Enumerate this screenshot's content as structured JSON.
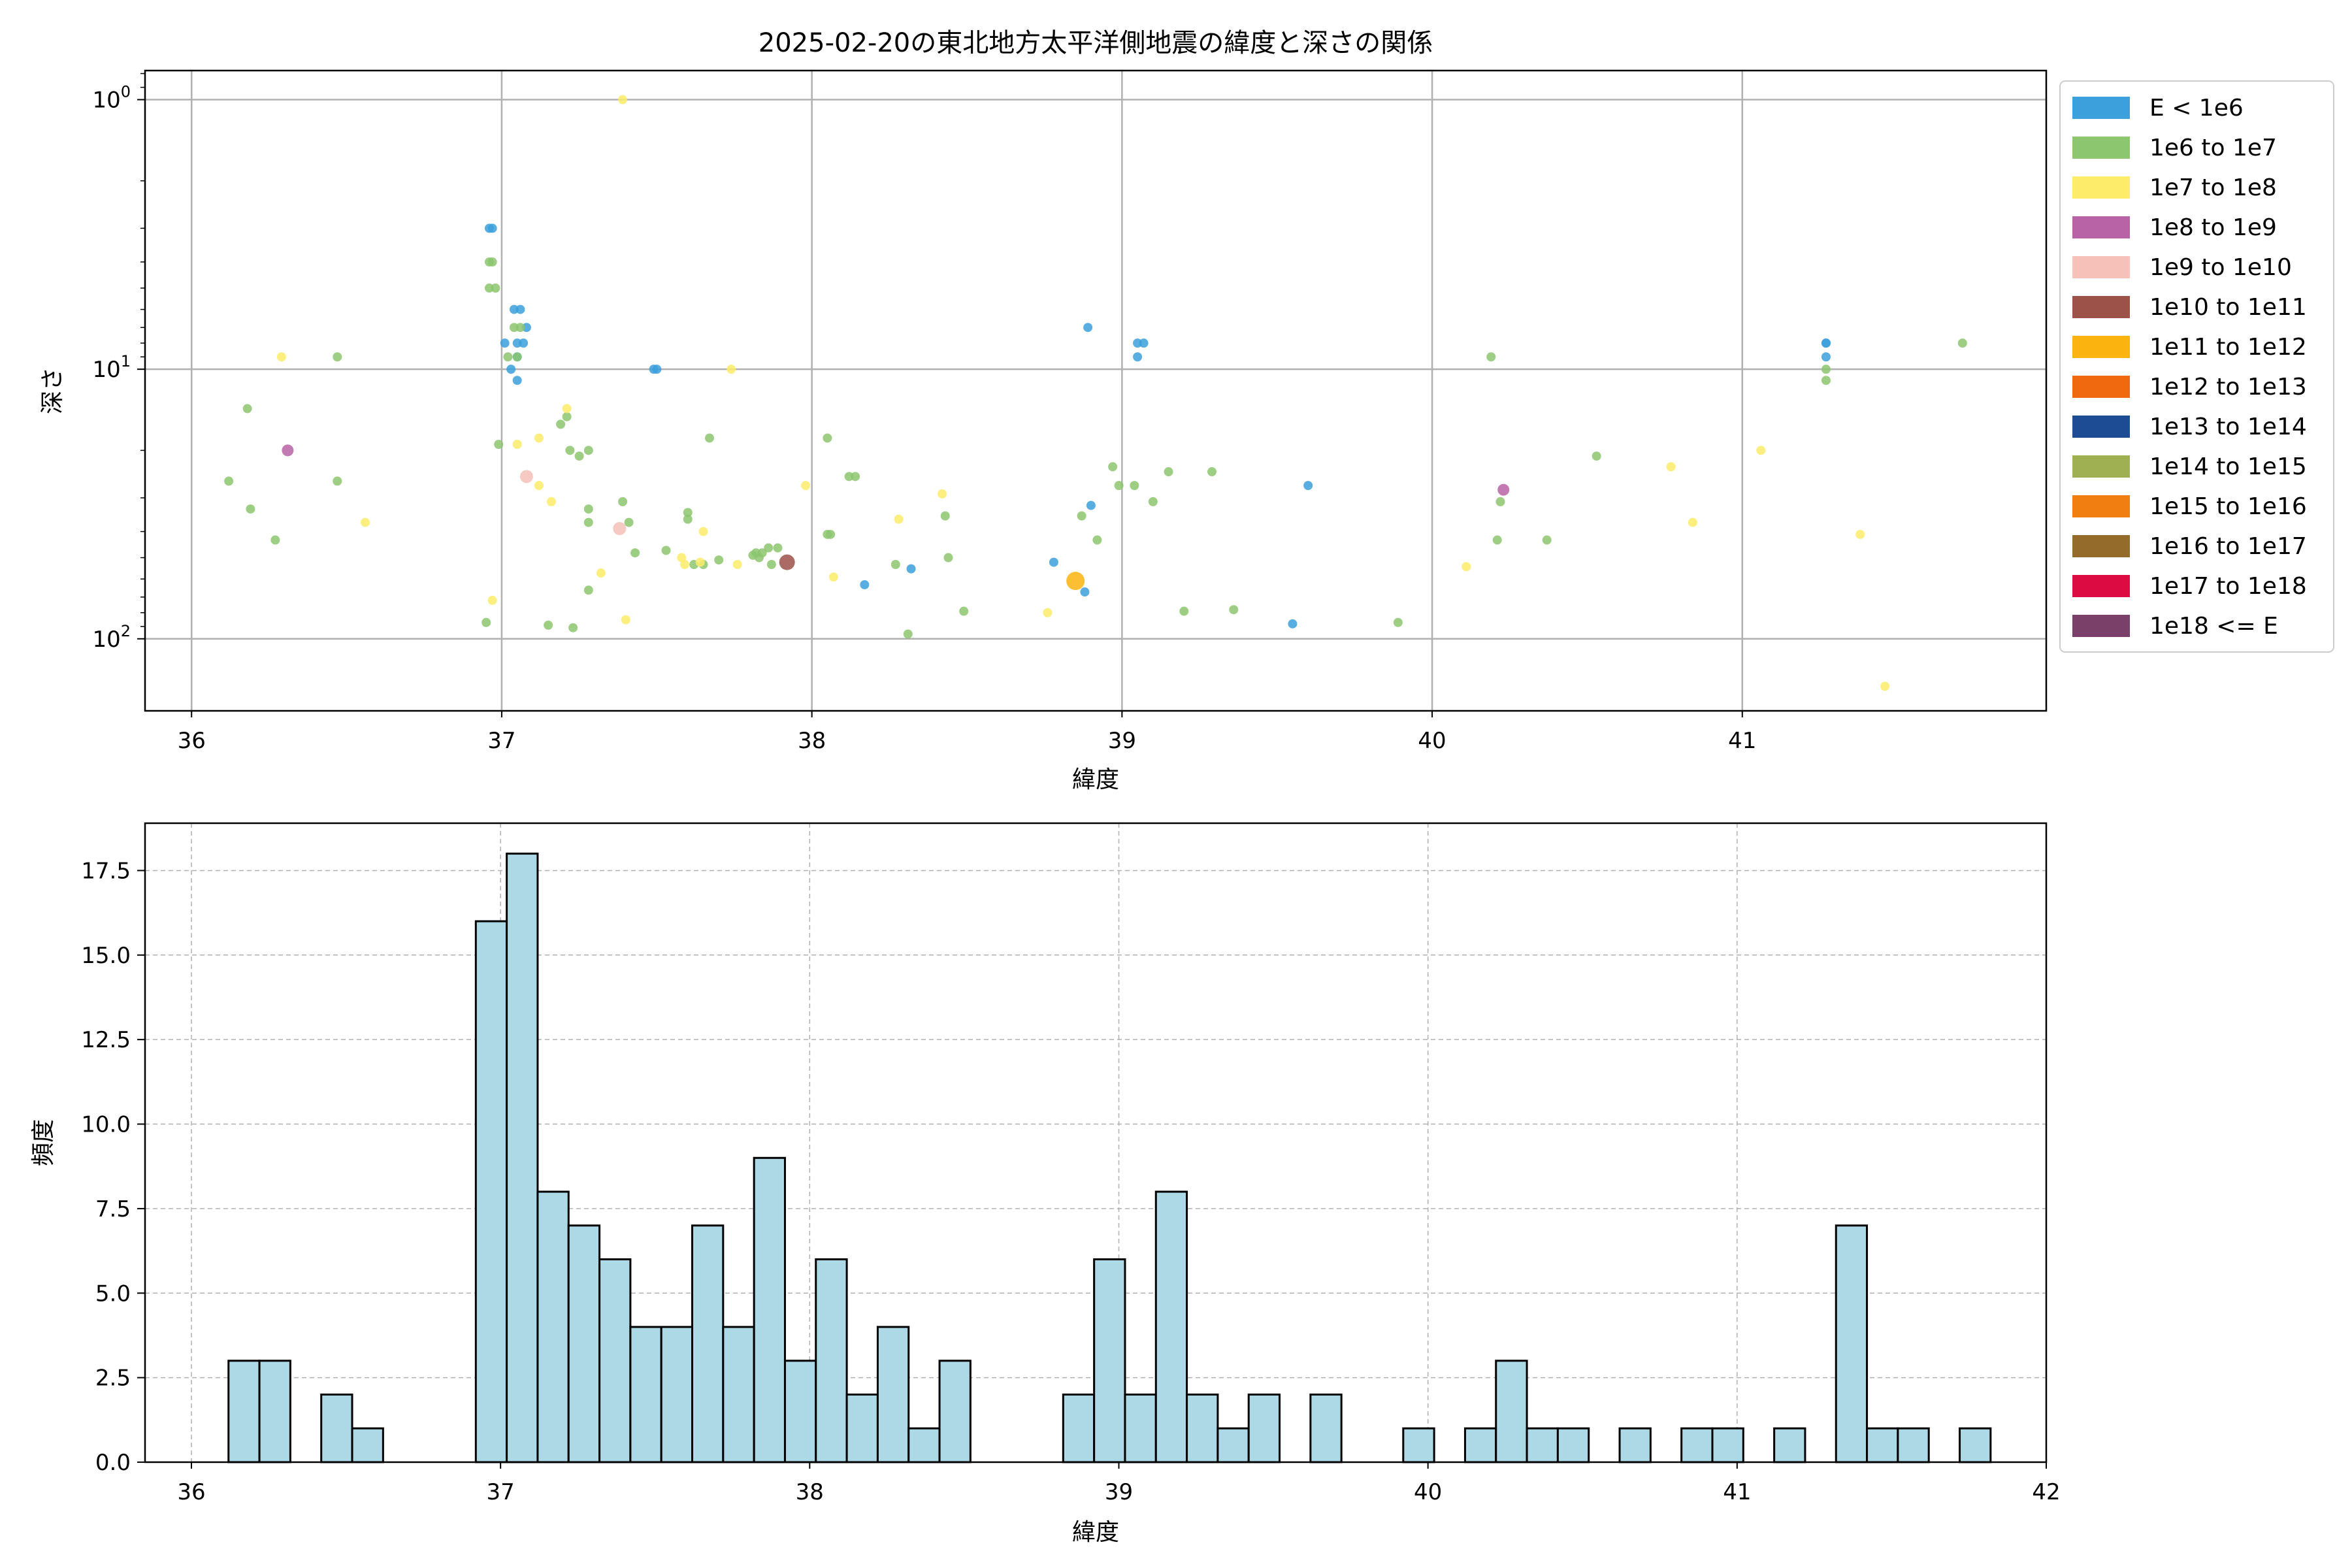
{
  "chart_data": [
    {
      "type": "scatter",
      "title": "2025-02-20の東北地方太平洋側地震の緯度と深さの関係",
      "xlabel": "緯度",
      "ylabel": "深さ",
      "xlim": [
        35.85,
        41.98
      ],
      "ylim": [
        185,
        0.78
      ],
      "yscale": "log",
      "y_inverted": true,
      "grid": true,
      "xticks": [
        36,
        37,
        38,
        39,
        40,
        41
      ],
      "yticks": [
        1,
        10,
        100
      ],
      "ytick_labels": [
        "10^0",
        "10^1",
        "10^2"
      ],
      "legend_position": "outside-right-top",
      "legend": [
        {
          "label": "E < 1e6",
          "color": "#3ca0dc"
        },
        {
          "label": "1e6 to 1e7",
          "color": "#8cc66e"
        },
        {
          "label": "1e7 to 1e8",
          "color": "#fcec6a"
        },
        {
          "label": "1e8 to 1e9",
          "color": "#b863a5"
        },
        {
          "label": "1e9 to 1e10",
          "color": "#f5c1b9"
        },
        {
          "label": "1e10 to 1e11",
          "color": "#9c5149"
        },
        {
          "label": "1e11 to 1e12",
          "color": "#fbb30f"
        },
        {
          "label": "1e12 to 1e13",
          "color": "#f0690e"
        },
        {
          "label": "1e13 to 1e14",
          "color": "#1d4b94"
        },
        {
          "label": "1e14 to 1e15",
          "color": "#9eb052"
        },
        {
          "label": "1e15 to 1e16",
          "color": "#f07e10"
        },
        {
          "label": "1e16 to 1e17",
          "color": "#956b2c"
        },
        {
          "label": "1e17 to 1e18",
          "color": "#dc0b41"
        },
        {
          "label": "1e18 <= E",
          "color": "#7a4069"
        }
      ],
      "series": [
        {
          "name": "E < 1e6",
          "points": [
            [
              36.96,
              3.0
            ],
            [
              36.97,
              3.0
            ],
            [
              37.04,
              6.0
            ],
            [
              37.06,
              6.0
            ],
            [
              37.08,
              7.0
            ],
            [
              37.01,
              8.0
            ],
            [
              37.05,
              8.0
            ],
            [
              37.07,
              8.0
            ],
            [
              37.05,
              9.0
            ],
            [
              37.03,
              10.0
            ],
            [
              37.05,
              11.0
            ],
            [
              37.49,
              10.0
            ],
            [
              37.5,
              10.0
            ],
            [
              38.89,
              7.0
            ],
            [
              39.05,
              8.0
            ],
            [
              39.07,
              8.0
            ],
            [
              39.05,
              9.0
            ],
            [
              38.9,
              32.0
            ],
            [
              38.78,
              52.0
            ],
            [
              38.17,
              63.0
            ],
            [
              38.32,
              55.0
            ],
            [
              38.88,
              67.0
            ],
            [
              39.55,
              88.0
            ],
            [
              39.6,
              27.0
            ],
            [
              41.27,
              8.0
            ],
            [
              41.27,
              8.0
            ],
            [
              41.27,
              9.0
            ]
          ]
        },
        {
          "name": "1e6 to 1e7",
          "points": [
            [
              36.96,
              4.0
            ],
            [
              36.97,
              4.0
            ],
            [
              36.96,
              5.0
            ],
            [
              36.98,
              5.0
            ],
            [
              37.04,
              7.0
            ],
            [
              37.06,
              7.0
            ],
            [
              37.02,
              9.0
            ],
            [
              37.05,
              9.0
            ],
            [
              36.18,
              14.0
            ],
            [
              36.47,
              9.0
            ],
            [
              36.12,
              26.0
            ],
            [
              36.19,
              33.0
            ],
            [
              36.27,
              43.0
            ],
            [
              36.47,
              26.0
            ],
            [
              36.95,
              87.0
            ],
            [
              36.99,
              19.0
            ],
            [
              37.15,
              89.0
            ],
            [
              37.23,
              91.0
            ],
            [
              37.21,
              15.0
            ],
            [
              37.19,
              16.0
            ],
            [
              37.22,
              20.0
            ],
            [
              37.25,
              21.0
            ],
            [
              37.28,
              20.0
            ],
            [
              37.28,
              37.0
            ],
            [
              37.28,
              33.0
            ],
            [
              37.28,
              66.0
            ],
            [
              37.39,
              31.0
            ],
            [
              37.41,
              37.0
            ],
            [
              37.43,
              48.0
            ],
            [
              37.53,
              47.0
            ],
            [
              37.6,
              34.0
            ],
            [
              37.6,
              36.0
            ],
            [
              37.62,
              53.0
            ],
            [
              37.65,
              53.0
            ],
            [
              37.7,
              51.0
            ],
            [
              37.67,
              18.0
            ],
            [
              37.82,
              48.0
            ],
            [
              37.84,
              48.0
            ],
            [
              37.83,
              50.0
            ],
            [
              37.86,
              46.0
            ],
            [
              37.87,
              53.0
            ],
            [
              37.89,
              46.0
            ],
            [
              37.81,
              49.0
            ],
            [
              38.05,
              18.0
            ],
            [
              38.05,
              41.0
            ],
            [
              38.06,
              41.0
            ],
            [
              38.12,
              25.0
            ],
            [
              38.14,
              25.0
            ],
            [
              38.27,
              53.0
            ],
            [
              38.43,
              35.0
            ],
            [
              38.44,
              50.0
            ],
            [
              38.49,
              79.0
            ],
            [
              38.31,
              96.0
            ],
            [
              38.87,
              35.0
            ],
            [
              38.92,
              43.0
            ],
            [
              38.97,
              23.0
            ],
            [
              38.99,
              27.0
            ],
            [
              39.04,
              27.0
            ],
            [
              39.1,
              31.0
            ],
            [
              39.15,
              24.0
            ],
            [
              39.2,
              79.0
            ],
            [
              39.29,
              24.0
            ],
            [
              39.36,
              78.0
            ],
            [
              39.89,
              87.0
            ],
            [
              40.19,
              9.0
            ],
            [
              40.21,
              43.0
            ],
            [
              40.22,
              31.0
            ],
            [
              40.37,
              43.0
            ],
            [
              40.53,
              21.0
            ],
            [
              41.27,
              10.0
            ],
            [
              41.27,
              11.0
            ],
            [
              41.71,
              8.0
            ]
          ]
        },
        {
          "name": "1e7 to 1e8",
          "points": [
            [
              37.39,
              1.0
            ],
            [
              36.29,
              9.0
            ],
            [
              37.74,
              10.0
            ],
            [
              37.21,
              14.0
            ],
            [
              37.05,
              19.0
            ],
            [
              37.12,
              18.0
            ],
            [
              37.12,
              27.0
            ],
            [
              37.16,
              31.0
            ],
            [
              36.56,
              37.0
            ],
            [
              37.32,
              57.0
            ],
            [
              36.97,
              72.0
            ],
            [
              37.4,
              85.0
            ],
            [
              37.58,
              50.0
            ],
            [
              37.59,
              53.0
            ],
            [
              37.64,
              52.0
            ],
            [
              37.65,
              40.0
            ],
            [
              37.76,
              53.0
            ],
            [
              37.98,
              27.0
            ],
            [
              38.07,
              59.0
            ],
            [
              38.28,
              36.0
            ],
            [
              38.42,
              29.0
            ],
            [
              38.76,
              80.0
            ],
            [
              40.11,
              54.0
            ],
            [
              40.77,
              23.0
            ],
            [
              40.84,
              37.0
            ],
            [
              41.06,
              20.0
            ],
            [
              41.38,
              41.0
            ],
            [
              41.46,
              150.0
            ]
          ]
        },
        {
          "name": "1e8 to 1e9",
          "points": [
            [
              36.31,
              20.0
            ],
            [
              40.23,
              28.0
            ]
          ]
        },
        {
          "name": "1e9 to 1e10",
          "points": [
            [
              37.08,
              25.0
            ],
            [
              37.38,
              39.0
            ]
          ]
        },
        {
          "name": "1e10 to 1e11",
          "points": [
            [
              37.92,
              52.0
            ]
          ]
        },
        {
          "name": "1e11 to 1e12",
          "points": [
            [
              38.85,
              61.0
            ]
          ]
        }
      ]
    },
    {
      "type": "bar",
      "title": "",
      "xlabel": "緯度",
      "ylabel": "頻度",
      "xlim": [
        35.85,
        42.0
      ],
      "ylim": [
        0,
        18.9
      ],
      "grid": true,
      "xticks": [
        36,
        37,
        38,
        39,
        40,
        41,
        42
      ],
      "yticks": [
        0.0,
        2.5,
        5.0,
        7.5,
        10.0,
        12.5,
        15.0,
        17.5
      ],
      "ytick_labels": [
        "0.0",
        "2.5",
        "5.0",
        "7.5",
        "10.0",
        "12.5",
        "15.0",
        "17.5"
      ],
      "bar_color": "#add8e6",
      "bin_start": 36.12,
      "bin_width": 0.1,
      "values": [
        3,
        3,
        0,
        2,
        1,
        0,
        0,
        0,
        16,
        18,
        8,
        7,
        6,
        4,
        4,
        7,
        4,
        9,
        3,
        6,
        2,
        4,
        1,
        3,
        0,
        0,
        0,
        2,
        6,
        2,
        8,
        2,
        1,
        2,
        0,
        2,
        0,
        0,
        1,
        0,
        1,
        3,
        1,
        1,
        0,
        1,
        0,
        1,
        1,
        0,
        1,
        0,
        7,
        1,
        1,
        0,
        1
      ]
    }
  ]
}
